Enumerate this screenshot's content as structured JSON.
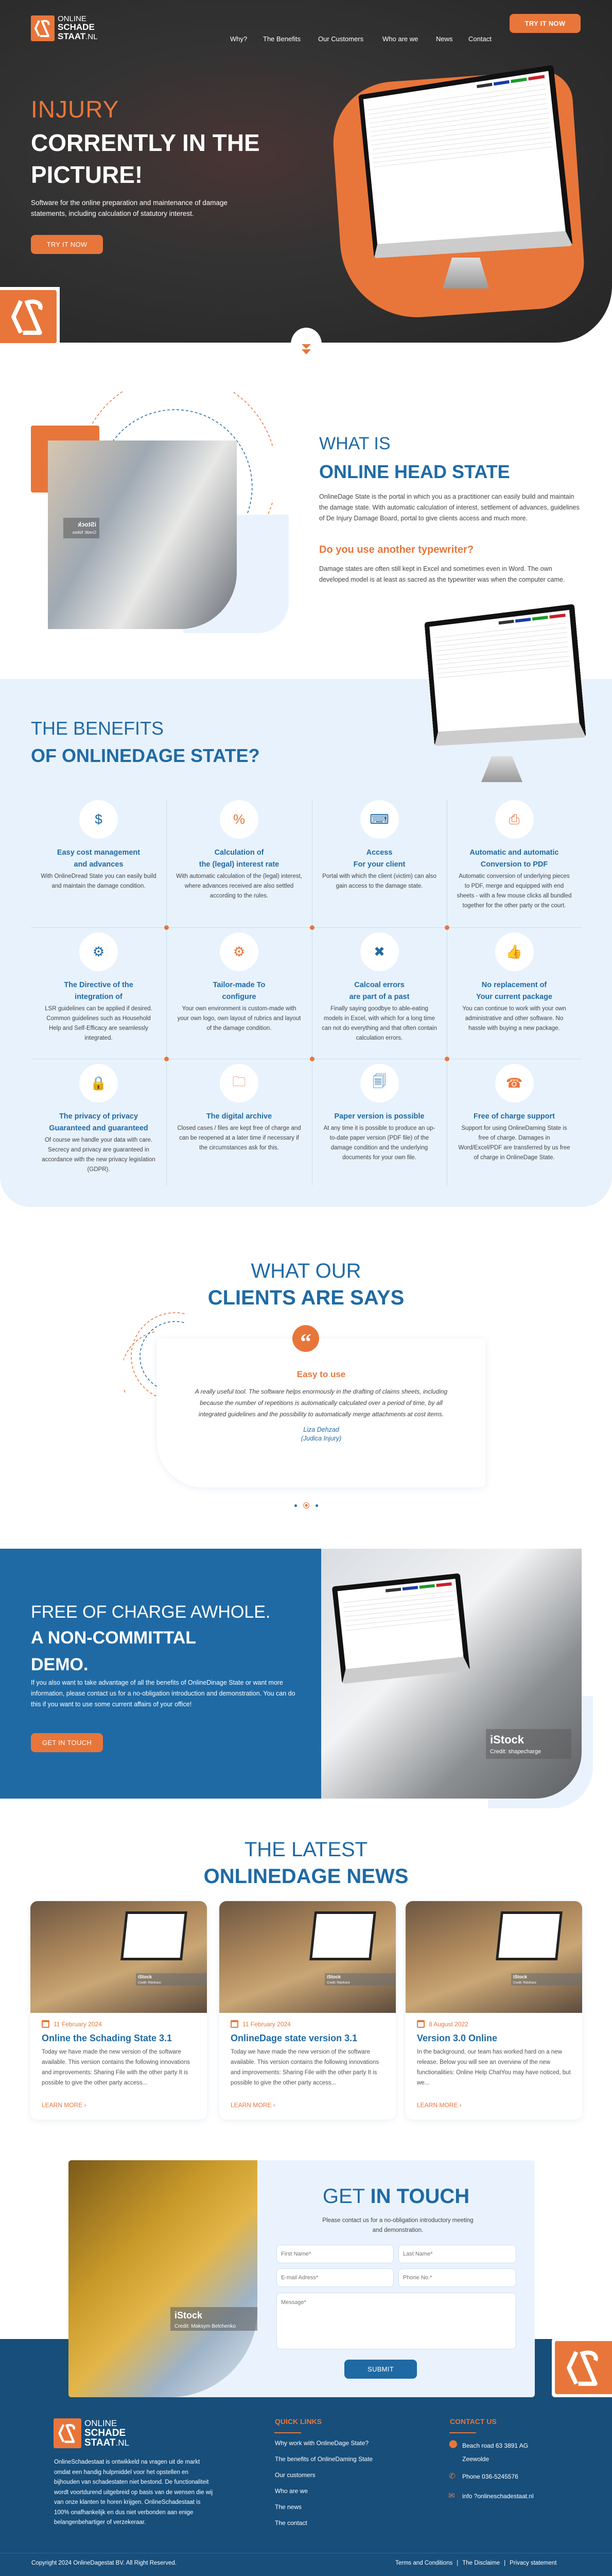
{
  "colors": {
    "accent": "#e8763a",
    "primary": "#1f6aa5",
    "footer": "#174e7a",
    "light": "#e8f2fc"
  },
  "brand": {
    "line1": "ONLINE",
    "line2": "SCHADE",
    "line3": "STAAT",
    "suffix": ".NL"
  },
  "nav": {
    "items": [
      "Why?",
      "The Benefits",
      "Our Customers",
      "Who are we",
      "News",
      "Contact"
    ],
    "cta": "TRY IT NOW"
  },
  "hero": {
    "title1": "INJURY",
    "title2": "CORRENTLY IN THE",
    "title3": "PICTURE!",
    "text": "Software for the online preparation and maintenance of damage statements, including calculation of statutory interest.",
    "cta": "TRY IT NOW",
    "scroll_icon": "chevron-double-down-icon"
  },
  "about": {
    "title_thin": "WHAT IS",
    "title_bold": "ONLINE HEAD STATE",
    "text": "OnlineDage State is the portal in which you as a practitioner can easily build and maintain the damage state. With automatic calculation of interest, settlement of advances, guidelines of De Injury Damage Board, portal to give clients access and much more.",
    "subtitle": "Do you use another typewriter?",
    "text2": "Damage states are often still kept in Excel and sometimes even in Word. The own developed model is at least as sacred as the typewriter was when the computer came.",
    "photo_watermark": "iStock",
    "photo_credit": "Credit: fizkes"
  },
  "benefits": {
    "title_thin": "THE BENEFITS",
    "title_bold": "OF ONLINEDAGE STATE?",
    "items": [
      {
        "icon": "money-bag-calculator-icon",
        "glyph": "$",
        "t1": "Easy cost management",
        "t2": "and advances",
        "text": "With OnlineDread State you can easily build and maintain the damage condition."
      },
      {
        "icon": "calculator-percent-icon",
        "glyph": "%",
        "t1": "Calculation of",
        "t2": "the (legal) interest rate",
        "text": "With automatic calculation of the (legal) interest, where advances received are also settled according to the rules."
      },
      {
        "icon": "computer-user-network-icon",
        "glyph": "⌨",
        "t1": "Access",
        "t2": "For your client",
        "text": "Portal with which the client (victim) can also gain access to the damage state."
      },
      {
        "icon": "pdf-file-icon",
        "glyph": "⎙",
        "t1": "Automatic and automatic",
        "t2": "Conversion to PDF",
        "text": "Automatic conversion of underlying pieces to PDF, merge and equipped with end sheets - with a few mouse clicks all bundled together for the other party or the court."
      },
      {
        "icon": "puzzle-gear-icon",
        "glyph": "⚙",
        "t1": "The Directive of the",
        "t2": "integration of",
        "text": "LSR guidelines can be applied if desired. Common guidelines such as Household Help and Self-Efficacy are seamlessly integrated."
      },
      {
        "icon": "gear-target-icon",
        "glyph": "⚙",
        "t1": "Tailor-made To",
        "t2": "configure",
        "text": "Your own environment is custom-made with your own logo, own layout of rubrics and layout of the damage condition."
      },
      {
        "icon": "document-error-icon",
        "glyph": "✖",
        "t1": "Calcoal errors",
        "t2": "are part of a past",
        "text": "Finally saying goodbye to able-eating models in Excel, with which for a long time can not do everything and that often contain calculation errors."
      },
      {
        "icon": "thumbs-up-badge-icon",
        "glyph": "👍",
        "t1": "No replacement of",
        "t2": "Your current package",
        "text": "You can continue to work with your own administrative and other software. No hassle with buying a new package."
      },
      {
        "icon": "user-lock-icon",
        "glyph": "🔒",
        "t1": "The privacy of privacy",
        "t2": "Guaranteed and guaranteed",
        "text": "Of course we handle your data with care. Secrecy and privacy are guaranteed in accordance with the new privacy legislation (GDPR)."
      },
      {
        "icon": "monitor-folder-icon",
        "glyph": "🗀",
        "t1": "The digital archive",
        "t2": "",
        "text": "Closed cases / files are kept free of charge and can be reopened at a later time if necessary if the circumstances ask for this."
      },
      {
        "icon": "documents-icon",
        "glyph": "🗐",
        "t1": "Paper version is possible",
        "t2": "",
        "text": "At any time it is possible to produce an up-to-date paper version (PDF file) of the damage condition and the underlying documents for your own file."
      },
      {
        "icon": "support-agent-icon",
        "glyph": "☎",
        "t1": "Free of charge support",
        "t2": "",
        "text": "Support for using OnlineDaming State is free of charge. Damages in Word/Excel/PDF are transferred by us free of charge in OnlineDage State."
      }
    ]
  },
  "testimonials": {
    "title_thin": "WHAT OUR",
    "title_bold": "CLIENTS ARE SAYS",
    "quote_icon": "quote-icon",
    "heading": "Easy to use",
    "text": "A really useful tool. The software helps enormously in the drafting of claims sheets, including because the number of repetitions is automatically calculated over a period of time, by all integrated guidelines and the possibility to automatically merge attachments at cost items.",
    "name": "Liza Dehzad",
    "company": "(Judica Injury)",
    "active_slide": 2,
    "slide_count": 3
  },
  "demo": {
    "title_thin": "FREE OF CHARGE AWHOLE.",
    "title_bold1": "A NON-COMMITTAL",
    "title_bold2": "DEMO.",
    "text": "If you also want to take advantage of all the benefits of OnlineDinage State or want more information, please contact us for a no-obligation introduction and demonstration. You can do this if you want to use some current affairs of your office!",
    "cta": "GET IN TOUCH",
    "photo_watermark": "iStock",
    "photo_credit": "Credit: shapecharge"
  },
  "news": {
    "title_thin": "THE LATEST",
    "title_bold": "ONLINEDAGE NEWS",
    "learn_more": "LEARN MORE ›",
    "photo_watermark": "iStock",
    "photo_credit": "Credit: Ridofranz",
    "cards": [
      {
        "date": "11 February 2024",
        "title": "Online the Schading State 3.1",
        "text": "Today we have made the new version of the software available. This version contains the following innovations and improvements: Sharing File with the other party It is possible to give the other party access..."
      },
      {
        "date": "11 February 2024",
        "title": "OnlineDage state version 3.1",
        "text": "Today we have made the new version of the software available. This version contains the following innovations and improvements: Sharing File with the other party It is possible to give the other party access..."
      },
      {
        "date": "8 August 2022",
        "title": "Version 3.0 Online",
        "text": "In the background, our team has worked hard on a new release. Below you will see an overview of the new functionalities: Online Help ChatYou may have noticed, but we..."
      }
    ]
  },
  "contact": {
    "title_thin": "GET",
    "title_bold": "IN TOUCH",
    "text": "Please contact us for a no-obligation introductory meeting and demonstration.",
    "first_name": "First Name*",
    "last_name": "Last Name*",
    "email": "E-mail Adress*",
    "phone": "Phone No.*",
    "message": "Message*",
    "submit": "SUBMIT",
    "photo_watermark": "iStock",
    "photo_credit": "Credit: Maksym  Belchenko"
  },
  "footer": {
    "about": "OnlineSchadestaat is ontwikkeld na vragen uit de markt omdat een handig hulpmiddel voor het opstellen en bijhouden van schadestaten niet bestond. De functionaliteit wordt voortdurend uitgebreid op basis van de wensen die wij van onze klanten te horen krijgen. OnlineSchadestaat is 100% onafhankelijk en dus niet verbonden aan enige belangenbehartiger of verzekeraar.",
    "quick_links_title": "QUICK LINKS",
    "quick_links": [
      "Why work with OnlineDage State?",
      "The benefits of OnlineDaming State",
      "Our customers",
      "Who are we",
      "The news",
      "The contact"
    ],
    "contact_title": "CONTACT US",
    "address1": "Beach road 63 3891 AG",
    "address2": "Zeewolde",
    "phone": "Phone 036-5245576",
    "email": "info ?onlineschadestaat.nl",
    "copyright": "Copyright 2024 OnlineDagestat BV. All Right Reserved.",
    "legal": [
      "Terms and Conditions",
      "The Disclaime",
      "Privacy statement"
    ],
    "separator": "|"
  }
}
